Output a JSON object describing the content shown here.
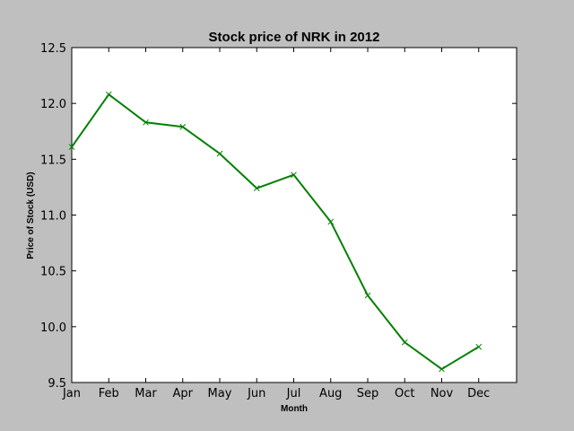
{
  "chart_data": {
    "type": "line",
    "title": "Stock price of NRK in 2012",
    "xlabel": "Month",
    "ylabel": "Price of Stock (USD)",
    "categories": [
      "Jan",
      "Feb",
      "Mar",
      "Apr",
      "May",
      "Jun",
      "Jul",
      "Aug",
      "Sep",
      "Oct",
      "Nov",
      "Dec"
    ],
    "series": [
      {
        "values": [
          11.61,
          12.08,
          11.83,
          11.79,
          11.55,
          11.24,
          11.36,
          10.94,
          10.28,
          9.86,
          9.62,
          9.82
        ],
        "color": "#008000",
        "marker": "x"
      }
    ],
    "x_range": [
      "Jan",
      "Dec"
    ],
    "ylim": [
      9.5,
      12.5
    ],
    "yticks": [
      "9.5",
      "10.0",
      "10.5",
      "11.0",
      "11.5",
      "12.0",
      "12.5"
    ],
    "grid": false,
    "background": "#bfbfbf",
    "plot_background": "#ffffff"
  }
}
